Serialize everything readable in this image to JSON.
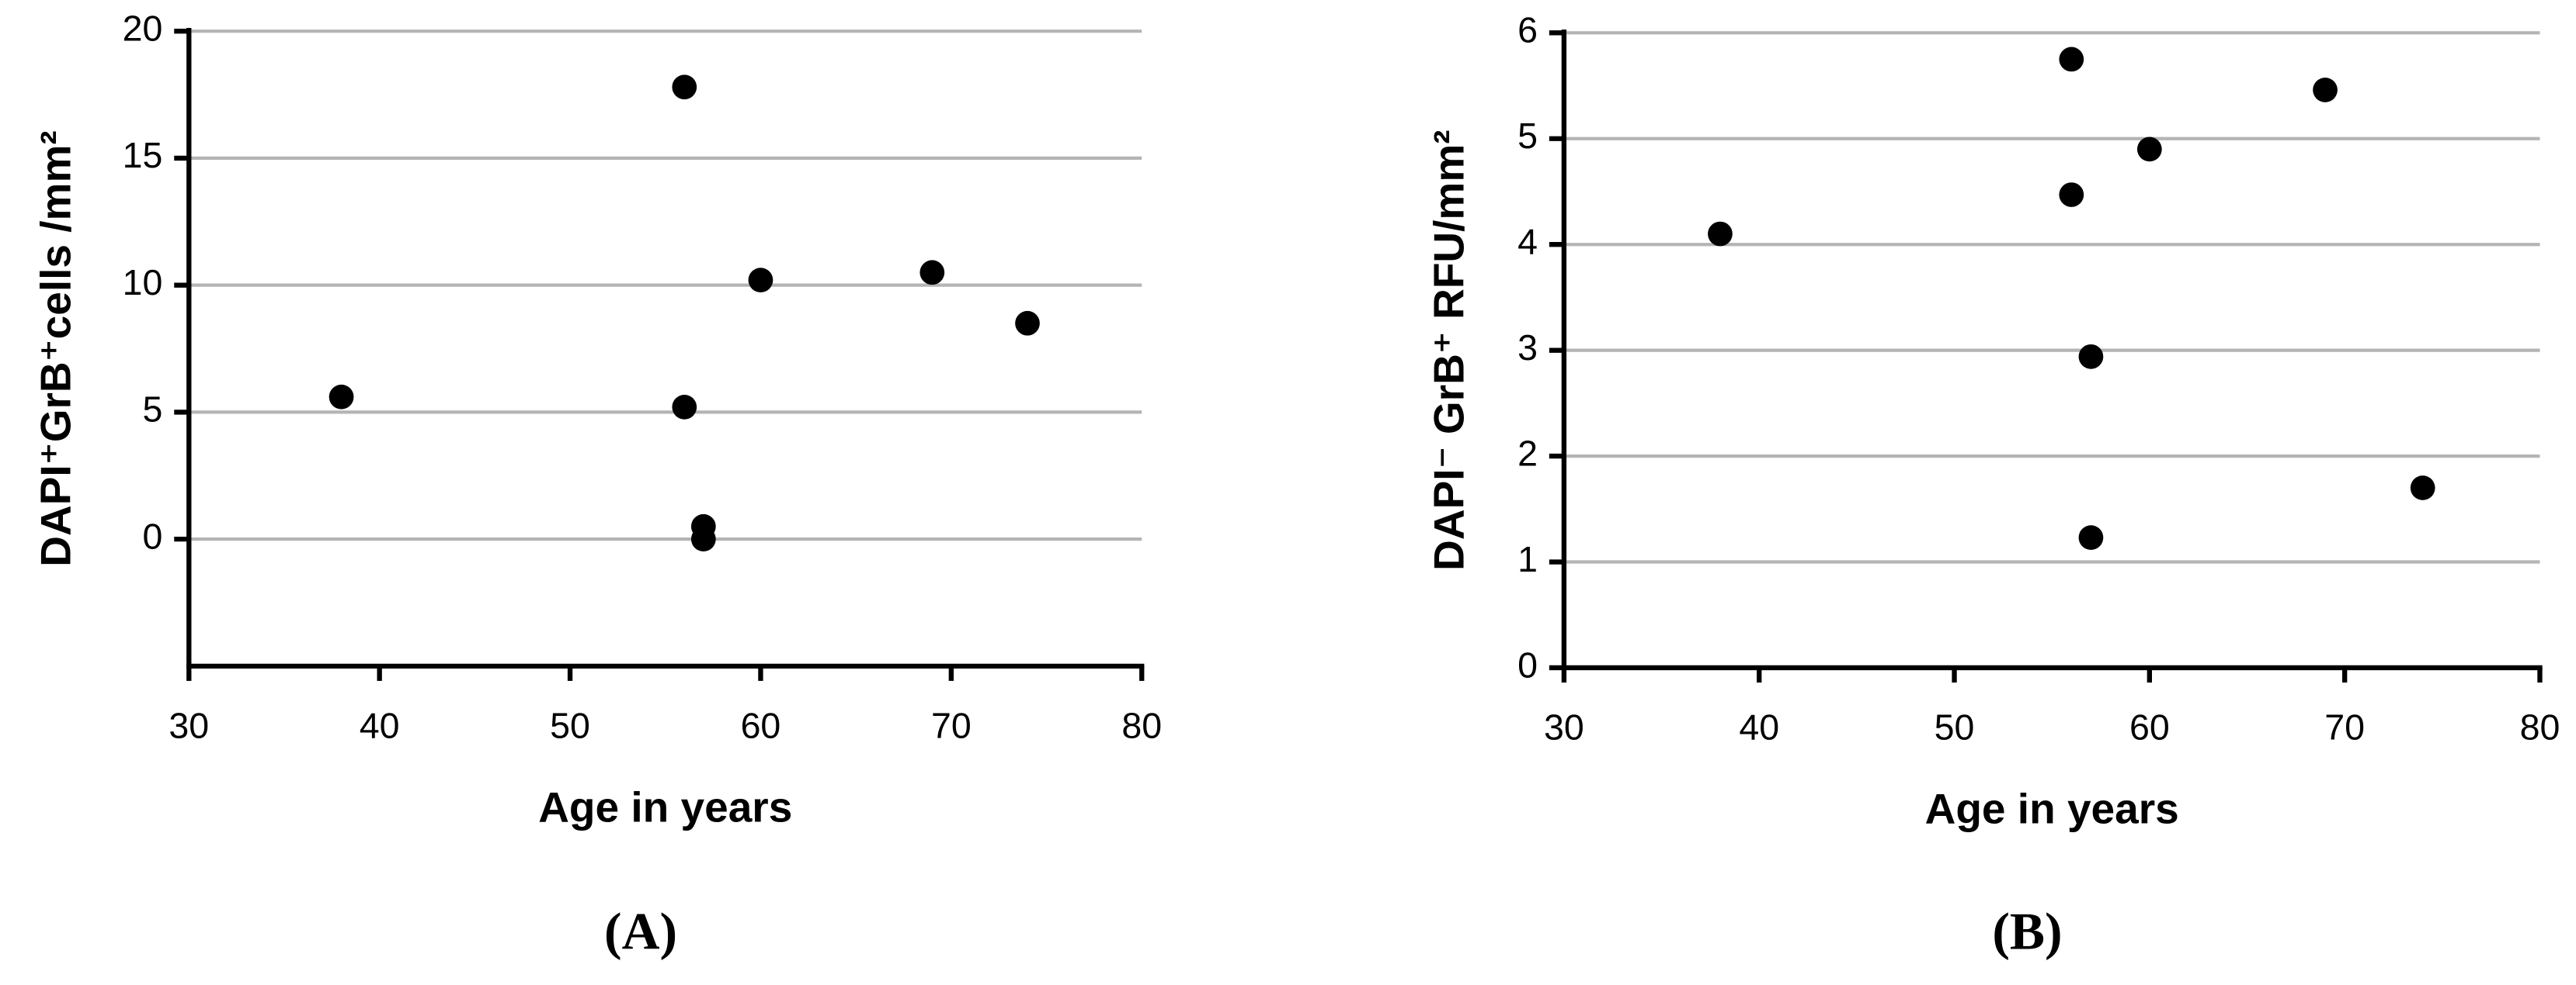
{
  "chart_data": [
    {
      "type": "scatter",
      "panel_label": "(A)",
      "xlabel": "Age in years",
      "ylabel": "DAPI⁺GrB⁺cells /mm²",
      "x": [
        38,
        56,
        56,
        57,
        57,
        60,
        69,
        74
      ],
      "values": [
        5.6,
        17.8,
        5.2,
        0.5,
        0,
        10.2,
        10.5,
        8.5
      ],
      "color": "#000000",
      "xlim": [
        30,
        80
      ],
      "xticks": [
        30,
        40,
        50,
        60,
        70,
        80
      ],
      "ylim": [
        -5,
        20
      ],
      "yticks": [
        0,
        5,
        10,
        15,
        20
      ],
      "grid": true
    },
    {
      "type": "scatter",
      "panel_label": "(B)",
      "xlabel": "Age in years",
      "ylabel": "DAPI⁻ GrB⁺ RFU/mm²",
      "x": [
        38,
        56,
        56,
        57,
        57,
        60,
        69,
        74
      ],
      "values": [
        4.1,
        5.75,
        4.47,
        2.94,
        1.23,
        4.9,
        5.46,
        1.7
      ],
      "color": "#000000",
      "xlim": [
        30,
        80
      ],
      "xticks": [
        30,
        40,
        50,
        60,
        70,
        80
      ],
      "ylim": [
        0,
        6
      ],
      "yticks": [
        0,
        1,
        2,
        3,
        4,
        5,
        6
      ],
      "grid": true
    }
  ]
}
